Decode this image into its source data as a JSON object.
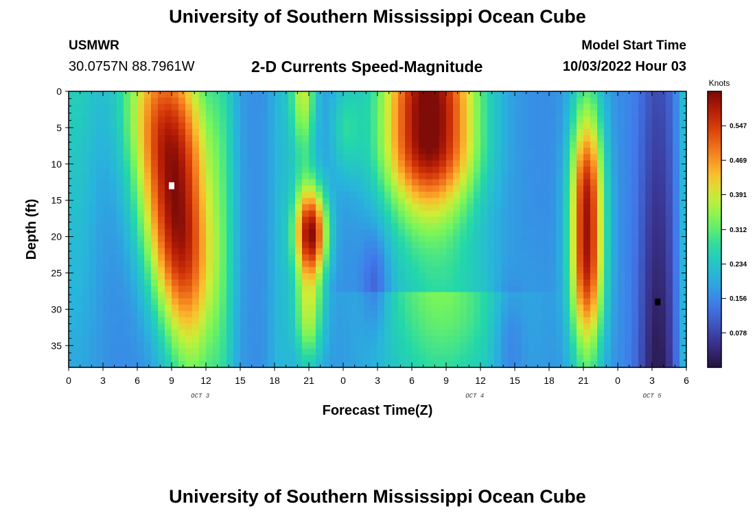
{
  "header": {
    "title": "University of Southern Mississippi Ocean Cube",
    "station": "USMWR",
    "coords": "30.0757N  88.7961W",
    "subtitle": "2-D Currents Speed-Magnitude",
    "model_start_label": "Model Start Time",
    "model_start_value": "10/03/2022 Hour 03"
  },
  "footer": {
    "title": "University of Southern Mississippi Ocean Cube"
  },
  "chart_data": {
    "type": "heatmap",
    "title": "2-D Currents Speed-Magnitude",
    "xlabel": "Forecast Time(Z)",
    "ylabel": "Depth (ft)",
    "x_range_hours": [
      0,
      54
    ],
    "ylim": [
      0,
      38
    ],
    "y_inverted": true,
    "x_tick_labels": [
      "0",
      "3",
      "6",
      "9",
      "12",
      "15",
      "18",
      "21",
      "0",
      "3",
      "6",
      "9",
      "12",
      "15",
      "18",
      "21",
      "0",
      "3",
      "6"
    ],
    "y_tick_values": [
      0,
      5,
      10,
      15,
      20,
      25,
      30,
      35
    ],
    "date_labels": [
      {
        "text": "OCT 3",
        "hour": 11.5
      },
      {
        "text": "OCT 4",
        "hour": 35.5
      },
      {
        "text": "OCT 5",
        "hour": 51
      }
    ],
    "colorbar": {
      "label": "Knots",
      "min": 0.0,
      "max": 0.625,
      "ticks": [
        0.078,
        0.156,
        0.234,
        0.312,
        0.391,
        0.469,
        0.547
      ],
      "tick_labels": [
        "0.078",
        "0.156",
        "0.234",
        "0.312",
        "0.391",
        "0.469",
        "0.547"
      ]
    },
    "field_components": [
      {
        "name": "Oct3 morning maximum",
        "hour": 9.2,
        "depth": 10,
        "width_hours": 2.8,
        "depth_span": 16,
        "speed": 0.64,
        "shift_hours_per_ft": 0.05
      },
      {
        "name": "Oct3 evening cell",
        "hour": 21.2,
        "depth": 19,
        "width_hours": 1.1,
        "depth_span": 7,
        "speed": 0.57,
        "shift_hours_per_ft": 0
      },
      {
        "name": "Oct4 morning maximum",
        "hour": 7.3,
        "day_offset": 24,
        "depth": 4,
        "width_hours": 3.0,
        "depth_span": 12,
        "speed": 0.64,
        "shift_hours_per_ft": 0
      },
      {
        "name": "Oct4 evening column",
        "hour": 21.3,
        "day_offset": 24,
        "depth": 20,
        "width_hours": 1.1,
        "depth_span": 13,
        "speed": 0.58,
        "shift_hours_per_ft": 0
      }
    ],
    "markers": [
      {
        "kind": "max",
        "hour": 9.0,
        "depth": 13,
        "color": "#ffffff"
      },
      {
        "kind": "min",
        "hour": 51.5,
        "depth": 29,
        "color": "#000000"
      }
    ]
  }
}
